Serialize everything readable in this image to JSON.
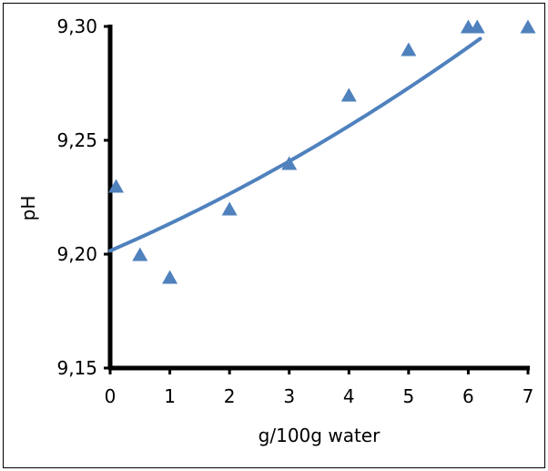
{
  "chart_data": {
    "type": "scatter",
    "title": "",
    "xlabel": "g/100g water",
    "ylabel": "pH",
    "xlim": [
      0,
      7
    ],
    "ylim": [
      9.15,
      9.3
    ],
    "x_ticks": [
      0,
      1,
      2,
      3,
      4,
      5,
      6,
      7
    ],
    "y_ticks": [
      9.15,
      9.2,
      9.25,
      9.3
    ],
    "x_tick_labels": [
      "0",
      "1",
      "2",
      "3",
      "4",
      "5",
      "6",
      "7"
    ],
    "y_tick_labels": [
      "9,15",
      "9,20",
      "9,25",
      "9,30"
    ],
    "grid": false,
    "legend": "none",
    "series": [
      {
        "marker": "triangle",
        "color": "#4F81BD",
        "x": [
          0.1,
          0.5,
          1.0,
          2.0,
          3.0,
          4.0,
          5.0,
          6.0,
          6.15,
          7.0
        ],
        "y": [
          9.23,
          9.2,
          9.19,
          9.22,
          9.24,
          9.27,
          9.29,
          9.3,
          9.3,
          9.3
        ]
      }
    ],
    "trendline": {
      "type": "polynomial",
      "color": "#4F81BD",
      "x_range": [
        0,
        6.2
      ],
      "coefficients": [
        9.2015,
        0.0113,
        0.0006
      ]
    },
    "axis_color": "#000000"
  }
}
